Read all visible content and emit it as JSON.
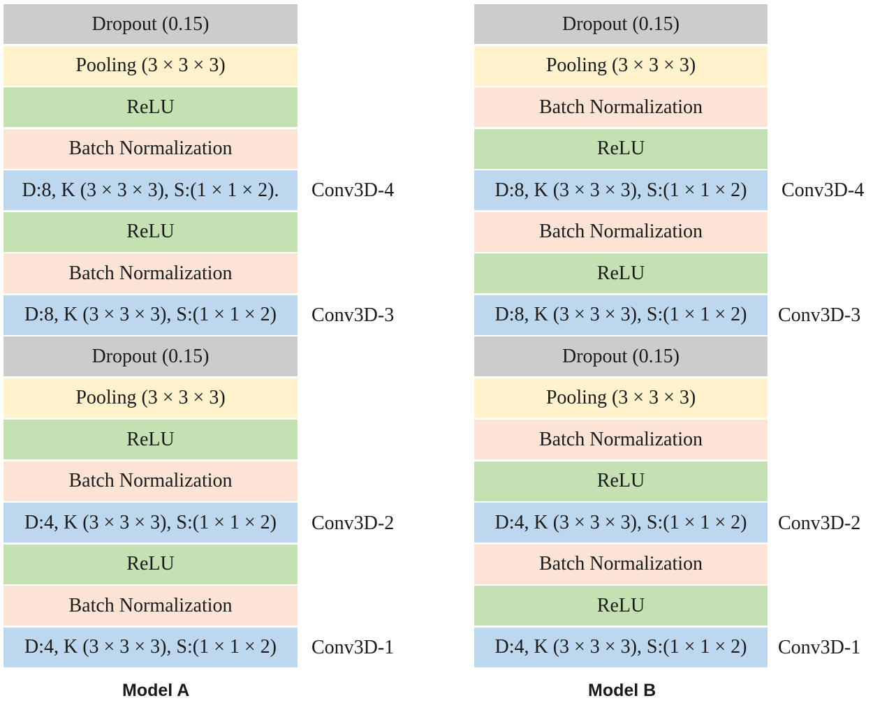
{
  "models": [
    {
      "title": "Model A",
      "layers": [
        {
          "type": "dropout",
          "label": "Dropout (0.15)"
        },
        {
          "type": "pool",
          "label": "Pooling (3 × 3 × 3)"
        },
        {
          "type": "relu",
          "label": "ReLU"
        },
        {
          "type": "bn",
          "label": "Batch Normalization"
        },
        {
          "type": "conv",
          "label": "D:8, K (3 × 3 × 3), S:(1 × 1 × 2).",
          "conv_name": "Conv3D-4"
        },
        {
          "type": "relu",
          "label": "ReLU"
        },
        {
          "type": "bn",
          "label": "Batch Normalization"
        },
        {
          "type": "conv",
          "label": "D:8, K (3 × 3 × 3), S:(1 × 1 × 2)",
          "conv_name": "Conv3D-3"
        },
        {
          "type": "dropout",
          "label": "Dropout (0.15)"
        },
        {
          "type": "pool",
          "label": "Pooling (3 × 3 × 3)"
        },
        {
          "type": "relu",
          "label": "ReLU"
        },
        {
          "type": "bn",
          "label": "Batch Normalization"
        },
        {
          "type": "conv",
          "label": "D:4, K (3 × 3 × 3), S:(1 × 1 × 2)",
          "conv_name": "Conv3D-2"
        },
        {
          "type": "relu",
          "label": "ReLU"
        },
        {
          "type": "bn",
          "label": "Batch Normalization"
        },
        {
          "type": "conv",
          "label": "D:4, K (3 × 3 × 3), S:(1 × 1 × 2)",
          "conv_name": "Conv3D-1"
        }
      ]
    },
    {
      "title": "Model B",
      "layers": [
        {
          "type": "dropout",
          "label": "Dropout (0.15)"
        },
        {
          "type": "pool",
          "label": "Pooling (3 × 3 × 3)"
        },
        {
          "type": "bn",
          "label": "Batch Normalization"
        },
        {
          "type": "relu",
          "label": "ReLU"
        },
        {
          "type": "conv",
          "label": "D:8, K (3 × 3 × 3), S:(1 × 1 × 2)",
          "conv_name": "Conv3D-4"
        },
        {
          "type": "bn",
          "label": "Batch Normalization"
        },
        {
          "type": "relu",
          "label": "ReLU"
        },
        {
          "type": "conv",
          "label": "D:8, K (3 × 3 × 3), S:(1 × 1 × 2)",
          "conv_name": "Conv3D-3"
        },
        {
          "type": "dropout",
          "label": "Dropout (0.15)"
        },
        {
          "type": "pool",
          "label": "Pooling (3 × 3 × 3)"
        },
        {
          "type": "bn",
          "label": "Batch Normalization"
        },
        {
          "type": "relu",
          "label": "ReLU"
        },
        {
          "type": "conv",
          "label": "D:4, K (3 × 3 × 3), S:(1 × 1 × 2)",
          "conv_name": "Conv3D-2"
        },
        {
          "type": "bn",
          "label": "Batch Normalization"
        },
        {
          "type": "relu",
          "label": "ReLU"
        },
        {
          "type": "conv",
          "label": "D:4, K (3 × 3 × 3), S:(1 × 1 × 2)",
          "conv_name": "Conv3D-1"
        }
      ]
    }
  ],
  "colors": {
    "dropout": "#cccccc",
    "pool": "#fff2cc",
    "relu": "#c5e0b3",
    "bn": "#fbe4d5",
    "conv": "#bdd7ee"
  }
}
